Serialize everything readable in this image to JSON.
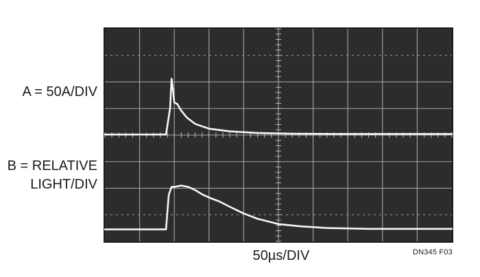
{
  "labels": {
    "channel_a": "A = 50A/DIV",
    "channel_b_line1": "B =  RELATIVE",
    "channel_b_line2": "LIGHT/DIV",
    "time_base": "50µs/DIV",
    "figure_id": "DN345 F03"
  },
  "colors": {
    "screen": "#2c2c2c",
    "grid": "#bdbdbd",
    "trace": "#f7f7f7",
    "text": "#1a1a1a"
  },
  "chart_data": {
    "type": "line",
    "title": "",
    "xlabel": "50µs/DIV",
    "ylabel": "",
    "x_unit_per_div": 50,
    "x_divisions": 10,
    "y_divisions": 8,
    "xlim": [
      0,
      500
    ],
    "grid": true,
    "series": [
      {
        "name": "A = 50A/DIV",
        "units_per_div": 50,
        "x": [
          0,
          80,
          88,
          94,
          96,
          98,
          100,
          104,
          110,
          118,
          130,
          150,
          180,
          220,
          270,
          340,
          420,
          500
        ],
        "y": [
          0,
          0,
          0,
          50,
          105,
          85,
          60,
          58,
          45,
          32,
          20,
          11,
          6,
          3,
          1.5,
          1,
          1,
          1
        ],
        "y_offset_div": 4
      },
      {
        "name": "B =  RELATIVE LIGHT/DIV",
        "units_per_div": 1,
        "x": [
          0,
          80,
          88,
          92,
          96,
          100,
          110,
          120,
          130,
          140,
          150,
          165,
          180,
          200,
          220,
          250,
          280,
          320,
          380,
          440,
          500
        ],
        "y": [
          0,
          0,
          0,
          1.3,
          1.6,
          1.6,
          1.65,
          1.6,
          1.48,
          1.32,
          1.2,
          1.05,
          0.85,
          0.6,
          0.4,
          0.2,
          0.12,
          0.05,
          0.02,
          0.02,
          0.02
        ],
        "y_offset_div": 0.45
      }
    ]
  }
}
